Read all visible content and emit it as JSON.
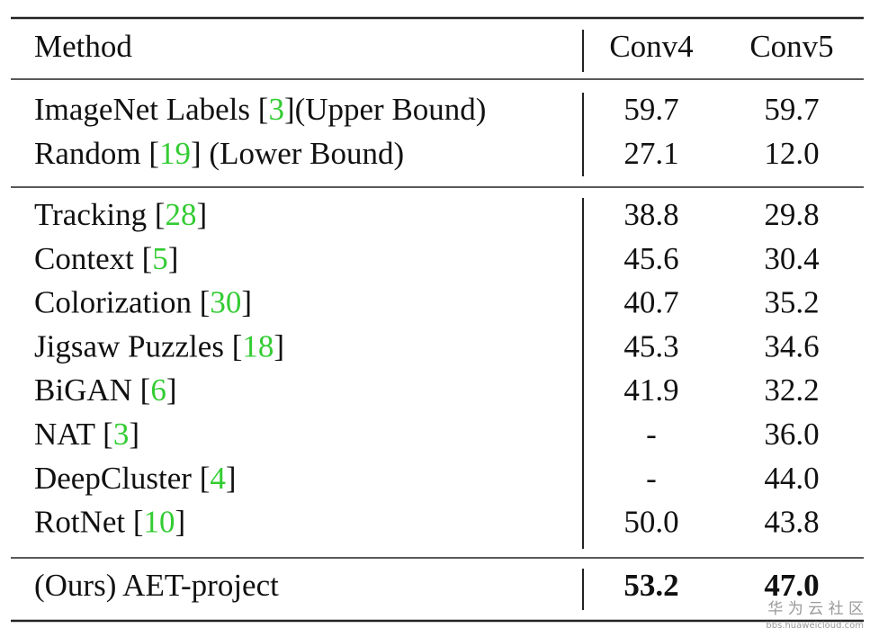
{
  "table": {
    "header": [
      "Method",
      "Conv4",
      "Conv5"
    ],
    "groups": [
      [
        {
          "method": "ImageNet Labels [",
          "cite": "3",
          "suffix": "](Upper Bound)",
          "conv4": "59.7",
          "conv5": "59.7"
        },
        {
          "method": "Random [",
          "cite": "19",
          "suffix": "] (Lower Bound)",
          "conv4": "27.1",
          "conv5": "12.0"
        }
      ],
      [
        {
          "method": "Tracking [",
          "cite": "28",
          "suffix": "]",
          "conv4": "38.8",
          "conv5": "29.8"
        },
        {
          "method": "Context [",
          "cite": "5",
          "suffix": "]",
          "conv4": "45.6",
          "conv5": "30.4"
        },
        {
          "method": "Colorization [",
          "cite": "30",
          "suffix": "]",
          "conv4": "40.7",
          "conv5": "35.2"
        },
        {
          "method": "Jigsaw Puzzles [",
          "cite": "18",
          "suffix": "]",
          "conv4": "45.3",
          "conv5": "34.6"
        },
        {
          "method": "BiGAN [",
          "cite": "6",
          "suffix": "]",
          "conv4": "41.9",
          "conv5": "32.2"
        },
        {
          "method": "NAT [",
          "cite": "3",
          "suffix": "]",
          "conv4": "-",
          "conv5": "36.0"
        },
        {
          "method": "DeepCluster [",
          "cite": "4",
          "suffix": "]",
          "conv4": "-",
          "conv5": "44.0"
        },
        {
          "method": "RotNet [",
          "cite": "10",
          "suffix": "]",
          "conv4": "50.0",
          "conv5": "43.8"
        }
      ],
      [
        {
          "method": "(Ours) AET-project",
          "conv4": "53.2",
          "conv5": "47.0"
        }
      ]
    ]
  },
  "watermark": {
    "title": "华 为 云 社 区",
    "url": "bbs.huaweicloud.com"
  }
}
